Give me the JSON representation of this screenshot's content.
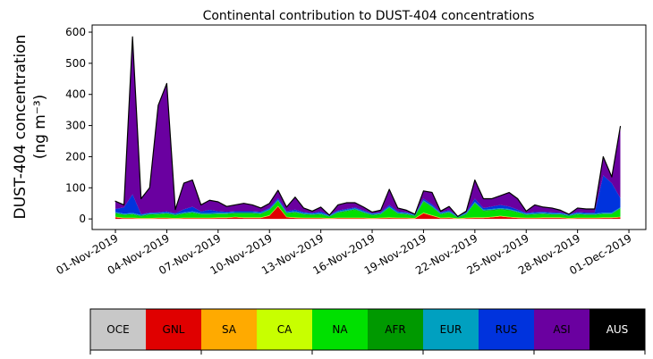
{
  "chart_data": {
    "type": "stacked-area",
    "title": "Continental contribution to DUST-404 concentrations",
    "ylabel": [
      "DUST-404 concentration",
      "(ng m⁻³)"
    ],
    "x": [
      0,
      0.5,
      1,
      1.5,
      2,
      2.5,
      3,
      3.5,
      4,
      4.5,
      5,
      5.5,
      6,
      6.5,
      7,
      7.5,
      8,
      8.5,
      9,
      9.5,
      10,
      10.5,
      11,
      11.5,
      12,
      12.5,
      13,
      13.5,
      14,
      14.5,
      15,
      15.5,
      16,
      16.5,
      17,
      17.5,
      18,
      18.5,
      19,
      19.5,
      20,
      20.5,
      21,
      21.5,
      22,
      22.5,
      23,
      23.5,
      24,
      24.5,
      25,
      25.5,
      26,
      26.5,
      27,
      27.5,
      28,
      28.5,
      29,
      29.5
    ],
    "xlim": [
      -1.36,
      30.99
    ],
    "xticks": [
      {
        "value": 0,
        "label": "01-Nov-2019"
      },
      {
        "value": 3,
        "label": "04-Nov-2019"
      },
      {
        "value": 6,
        "label": "07-Nov-2019"
      },
      {
        "value": 9,
        "label": "10-Nov-2019"
      },
      {
        "value": 12,
        "label": "13-Nov-2019"
      },
      {
        "value": 15,
        "label": "16-Nov-2019"
      },
      {
        "value": 18,
        "label": "19-Nov-2019"
      },
      {
        "value": 21,
        "label": "22-Nov-2019"
      },
      {
        "value": 24,
        "label": "25-Nov-2019"
      },
      {
        "value": 27,
        "label": "28-Nov-2019"
      },
      {
        "value": 30,
        "label": "01-Dec-2019"
      }
    ],
    "ylim": [
      -34,
      623
    ],
    "yticks": [
      0,
      100,
      200,
      300,
      400,
      500,
      600
    ],
    "series": [
      {
        "name": "OCE",
        "color": "#c8c8c8",
        "values": [
          0,
          0,
          0,
          0,
          0,
          0,
          0,
          0,
          0,
          0,
          0,
          0,
          0,
          0,
          0,
          0,
          0,
          0,
          0,
          0,
          0,
          0,
          0,
          0,
          0,
          0,
          0,
          0,
          0,
          0,
          0,
          0,
          0,
          0,
          0,
          0,
          0,
          0,
          0,
          0,
          0,
          0,
          0,
          0,
          0,
          0,
          0,
          0,
          0,
          0,
          0,
          0,
          0,
          0,
          0,
          0,
          0,
          0,
          0,
          0
        ]
      },
      {
        "name": "GNL",
        "color": "#e00000",
        "values": [
          5,
          2,
          2,
          1,
          1,
          2,
          2,
          1,
          2,
          2,
          2,
          2,
          3,
          3,
          5,
          3,
          3,
          3,
          10,
          40,
          5,
          3,
          2,
          2,
          2,
          1,
          2,
          2,
          2,
          2,
          1,
          2,
          3,
          2,
          2,
          1,
          18,
          10,
          2,
          3,
          0,
          2,
          3,
          3,
          5,
          8,
          5,
          3,
          2,
          2,
          3,
          3,
          3,
          1,
          2,
          2,
          2,
          3,
          3,
          5
        ]
      },
      {
        "name": "SA",
        "color": "#ffaa00",
        "values": [
          1,
          1,
          1,
          1,
          1,
          1,
          1,
          1,
          1,
          1,
          1,
          1,
          1,
          1,
          1,
          1,
          1,
          1,
          1,
          1,
          1,
          1,
          1,
          1,
          1,
          1,
          1,
          1,
          1,
          1,
          1,
          1,
          1,
          1,
          1,
          1,
          1,
          1,
          1,
          1,
          1,
          1,
          1,
          1,
          1,
          1,
          1,
          1,
          1,
          1,
          1,
          1,
          1,
          1,
          1,
          1,
          1,
          1,
          1,
          1
        ]
      },
      {
        "name": "CA",
        "color": "#c8ff00",
        "values": [
          1,
          1,
          1,
          1,
          1,
          1,
          1,
          1,
          1,
          1,
          1,
          1,
          1,
          1,
          1,
          1,
          1,
          1,
          1,
          1,
          1,
          1,
          1,
          1,
          1,
          1,
          1,
          1,
          1,
          1,
          1,
          1,
          1,
          1,
          1,
          1,
          1,
          1,
          1,
          1,
          1,
          1,
          1,
          1,
          1,
          1,
          1,
          1,
          1,
          1,
          1,
          1,
          1,
          1,
          1,
          1,
          1,
          1,
          1,
          1
        ]
      },
      {
        "name": "NA",
        "color": "#00e000",
        "values": [
          10,
          8,
          10,
          5,
          10,
          10,
          12,
          8,
          12,
          15,
          10,
          10,
          10,
          10,
          10,
          12,
          12,
          10,
          15,
          15,
          10,
          15,
          10,
          8,
          10,
          3,
          15,
          20,
          25,
          15,
          8,
          10,
          30,
          12,
          10,
          5,
          35,
          25,
          10,
          15,
          1,
          10,
          45,
          20,
          20,
          20,
          20,
          15,
          8,
          10,
          10,
          8,
          8,
          5,
          10,
          8,
          8,
          10,
          10,
          25
        ]
      },
      {
        "name": "AFR",
        "color": "#009900",
        "values": [
          2,
          2,
          2,
          2,
          2,
          2,
          2,
          2,
          2,
          2,
          2,
          2,
          2,
          2,
          2,
          2,
          2,
          2,
          2,
          2,
          2,
          2,
          2,
          2,
          2,
          2,
          2,
          2,
          2,
          2,
          2,
          2,
          2,
          2,
          2,
          2,
          2,
          2,
          2,
          2,
          2,
          2,
          2,
          2,
          2,
          2,
          2,
          2,
          2,
          2,
          2,
          2,
          2,
          2,
          2,
          2,
          2,
          2,
          2,
          2
        ]
      },
      {
        "name": "EUR",
        "color": "#00a0c0",
        "values": [
          3,
          3,
          3,
          3,
          3,
          3,
          3,
          3,
          3,
          3,
          3,
          3,
          3,
          3,
          3,
          3,
          3,
          3,
          3,
          3,
          3,
          3,
          3,
          3,
          3,
          3,
          3,
          3,
          3,
          3,
          3,
          3,
          3,
          3,
          3,
          3,
          3,
          3,
          3,
          3,
          3,
          3,
          3,
          3,
          3,
          3,
          3,
          3,
          3,
          3,
          3,
          3,
          3,
          3,
          3,
          3,
          3,
          3,
          3,
          3
        ]
      },
      {
        "name": "RUS",
        "color": "#0033dd",
        "values": [
          10,
          20,
          60,
          2,
          2,
          2,
          3,
          2,
          10,
          15,
          5,
          10,
          5,
          3,
          3,
          3,
          3,
          3,
          3,
          5,
          3,
          5,
          3,
          2,
          5,
          1,
          3,
          3,
          3,
          3,
          2,
          2,
          5,
          3,
          2,
          1,
          5,
          5,
          2,
          3,
          0,
          2,
          10,
          5,
          8,
          10,
          8,
          5,
          2,
          3,
          3,
          3,
          2,
          1,
          3,
          3,
          3,
          120,
          95,
          30
        ]
      },
      {
        "name": "ASI",
        "color": "#6a00a0",
        "values": [
          25,
          8,
          506,
          50,
          80,
          344,
          411,
          12,
          84,
          86,
          21,
          31,
          30,
          17,
          20,
          25,
          20,
          12,
          15,
          25,
          13,
          40,
          13,
          6,
          14,
          0,
          18,
          20,
          15,
          11,
          4,
          7,
          50,
          11,
          7,
          1,
          25,
          38,
          4,
          12,
          0,
          4,
          60,
          30,
          25,
          30,
          45,
          35,
          6,
          23,
          15,
          14,
          8,
          1,
          13,
          12,
          12,
          60,
          20,
          230
        ]
      },
      {
        "name": "AUS",
        "color": "#000000",
        "values": [
          0,
          0,
          0,
          0,
          0,
          0,
          0,
          0,
          0,
          0,
          0,
          0,
          0,
          0,
          0,
          0,
          0,
          0,
          0,
          0,
          0,
          0,
          0,
          0,
          0,
          0,
          0,
          0,
          0,
          0,
          0,
          0,
          0,
          0,
          0,
          0,
          0,
          0,
          0,
          0,
          0,
          0,
          0,
          0,
          0,
          0,
          0,
          0,
          0,
          0,
          0,
          0,
          0,
          0,
          0,
          0,
          0,
          0,
          0,
          0
        ]
      }
    ]
  }
}
